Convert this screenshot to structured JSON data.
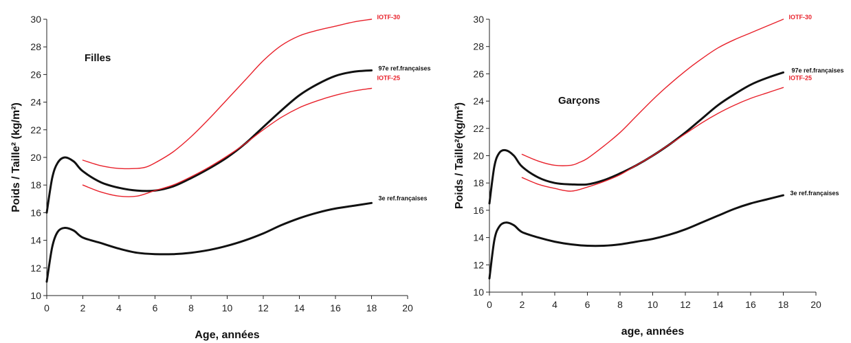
{
  "colors": {
    "black": "#111111",
    "red": "#e8202a",
    "axis": "#222222"
  },
  "chart_data": [
    {
      "type": "line",
      "title": "Filles",
      "xlabel": "Age, années",
      "ylabel": "Poids / Taille² (kg/m²)",
      "xlim": [
        0,
        20
      ],
      "ylim": [
        10,
        30
      ],
      "xticks": [
        0,
        2,
        4,
        6,
        8,
        10,
        12,
        14,
        16,
        18,
        20
      ],
      "yticks": [
        10,
        12,
        14,
        16,
        18,
        20,
        22,
        24,
        26,
        28,
        30
      ],
      "grid": false,
      "series": [
        {
          "name": "IOTF-30",
          "color": "red",
          "x": [
            2,
            3,
            4,
            5,
            5.5,
            6,
            7,
            8,
            9,
            10,
            11,
            12,
            13,
            14,
            15,
            16,
            17,
            18
          ],
          "y": [
            19.8,
            19.4,
            19.2,
            19.2,
            19.3,
            19.6,
            20.4,
            21.5,
            22.8,
            24.2,
            25.6,
            27.0,
            28.1,
            28.8,
            29.2,
            29.5,
            29.8,
            30.0
          ]
        },
        {
          "name": "97e ref.françaises",
          "color": "black",
          "x": [
            0,
            0.3,
            0.6,
            1,
            1.5,
            2,
            3,
            4,
            5,
            6,
            7,
            8,
            9,
            10,
            11,
            12,
            13,
            14,
            15,
            16,
            17,
            18
          ],
          "y": [
            16.0,
            18.5,
            19.6,
            20.0,
            19.7,
            19.0,
            18.2,
            17.8,
            17.6,
            17.6,
            17.9,
            18.5,
            19.2,
            20.0,
            21.0,
            22.2,
            23.4,
            24.5,
            25.3,
            25.9,
            26.2,
            26.3
          ]
        },
        {
          "name": "IOTF-25",
          "color": "red",
          "x": [
            2,
            3,
            4,
            5,
            6,
            7,
            8,
            9,
            10,
            11,
            12,
            13,
            14,
            15,
            16,
            17,
            18
          ],
          "y": [
            18.0,
            17.5,
            17.2,
            17.2,
            17.6,
            18.0,
            18.6,
            19.3,
            20.1,
            21.0,
            22.0,
            22.9,
            23.6,
            24.1,
            24.5,
            24.8,
            25.0
          ]
        },
        {
          "name": "3e ref.françaises",
          "color": "black",
          "x": [
            0,
            0.3,
            0.6,
            1,
            1.5,
            2,
            3,
            4,
            5,
            6,
            7,
            8,
            9,
            10,
            11,
            12,
            13,
            14,
            15,
            16,
            17,
            18
          ],
          "y": [
            11.0,
            13.5,
            14.6,
            14.9,
            14.7,
            14.2,
            13.8,
            13.4,
            13.1,
            13.0,
            13.0,
            13.1,
            13.3,
            13.6,
            14.0,
            14.5,
            15.1,
            15.6,
            16.0,
            16.3,
            16.5,
            16.7
          ]
        }
      ]
    },
    {
      "type": "line",
      "title": "Garçons",
      "xlabel": "age, années",
      "ylabel": "Poids / Taille²(kg/m²)",
      "xlim": [
        0,
        20
      ],
      "ylim": [
        10,
        30
      ],
      "xticks": [
        0,
        2,
        4,
        6,
        8,
        10,
        12,
        14,
        16,
        18,
        20
      ],
      "yticks": [
        10,
        12,
        14,
        16,
        18,
        20,
        22,
        24,
        26,
        28,
        30
      ],
      "grid": false,
      "series": [
        {
          "name": "IOTF-30",
          "color": "red",
          "x": [
            2,
            3,
            4,
            5,
            5.5,
            6,
            7,
            8,
            9,
            10,
            11,
            12,
            13,
            14,
            15,
            16,
            17,
            18
          ],
          "y": [
            20.1,
            19.6,
            19.3,
            19.3,
            19.5,
            19.8,
            20.7,
            21.7,
            22.9,
            24.1,
            25.2,
            26.2,
            27.1,
            27.9,
            28.5,
            29.0,
            29.5,
            30.0
          ]
        },
        {
          "name": "97e ref.françaises",
          "color": "black",
          "x": [
            0,
            0.3,
            0.6,
            1,
            1.5,
            2,
            3,
            4,
            5,
            6,
            7,
            8,
            9,
            10,
            11,
            12,
            13,
            14,
            15,
            16,
            17,
            18
          ],
          "y": [
            16.5,
            19.2,
            20.2,
            20.4,
            20.0,
            19.2,
            18.4,
            18.0,
            17.9,
            17.9,
            18.2,
            18.7,
            19.3,
            20.0,
            20.8,
            21.7,
            22.7,
            23.7,
            24.5,
            25.2,
            25.7,
            26.1
          ]
        },
        {
          "name": "IOTF-25",
          "color": "red",
          "x": [
            2,
            3,
            4,
            5,
            6,
            7,
            8,
            9,
            10,
            11,
            12,
            13,
            14,
            15,
            16,
            17,
            18
          ],
          "y": [
            18.4,
            17.9,
            17.6,
            17.4,
            17.7,
            18.1,
            18.6,
            19.3,
            20.0,
            20.8,
            21.6,
            22.4,
            23.1,
            23.7,
            24.2,
            24.6,
            25.0
          ]
        },
        {
          "name": "3e ref.françaises",
          "color": "black",
          "x": [
            0,
            0.3,
            0.6,
            1,
            1.5,
            2,
            3,
            4,
            5,
            6,
            7,
            8,
            9,
            10,
            11,
            12,
            13,
            14,
            15,
            16,
            17,
            18
          ],
          "y": [
            11.0,
            13.8,
            14.8,
            15.1,
            14.9,
            14.4,
            14.0,
            13.7,
            13.5,
            13.4,
            13.4,
            13.5,
            13.7,
            13.9,
            14.2,
            14.6,
            15.1,
            15.6,
            16.1,
            16.5,
            16.8,
            17.1
          ]
        }
      ]
    }
  ]
}
